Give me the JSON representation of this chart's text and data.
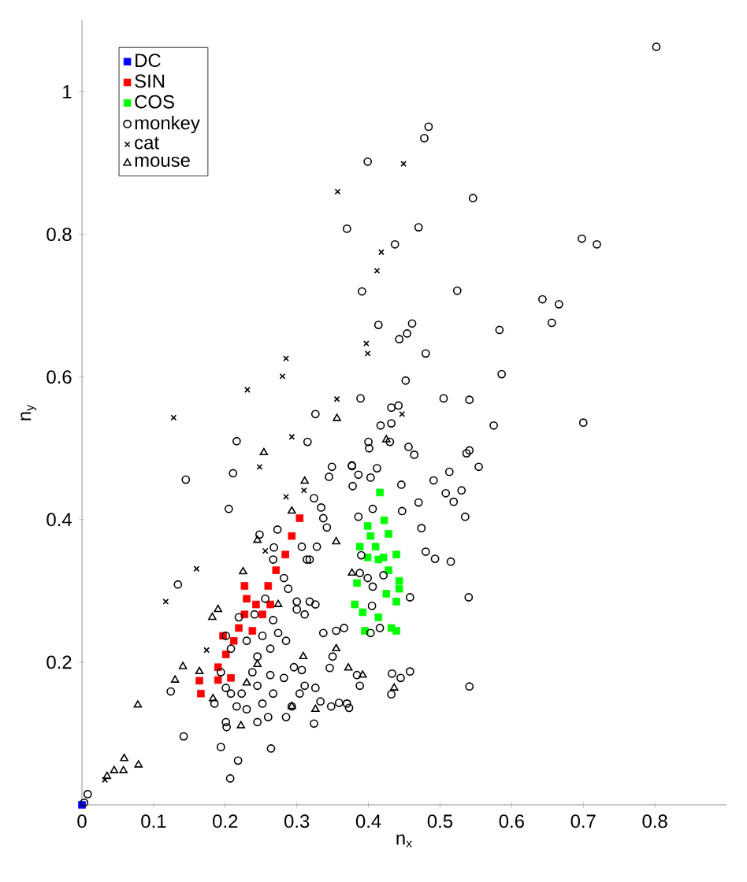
{
  "chart_data": {
    "type": "scatter",
    "xlabel": "n$_{x}$",
    "ylabel": "n$_{y}$",
    "xlim": [
      0,
      0.9
    ],
    "ylim": [
      0,
      1.1
    ],
    "xticks": [
      0,
      0.1,
      0.2,
      0.3,
      0.4,
      0.5,
      0.6,
      0.7,
      0.8
    ],
    "yticks": [
      0.2,
      0.4,
      0.6,
      0.8,
      1
    ],
    "legend": "top left",
    "series": [
      {
        "name": "DC",
        "color": "#0000ff",
        "marker": "square",
        "x": [
          0
        ],
        "values": [
          0
        ]
      },
      {
        "name": "SIN",
        "color": "#ff0000",
        "marker": "square",
        "x": [
          0.166,
          0.164,
          0.19,
          0.19,
          0.201,
          0.212,
          0.219,
          0.227,
          0.227,
          0.23,
          0.243,
          0.252,
          0.26,
          0.271,
          0.284,
          0.293,
          0.304,
          0.208,
          0.197,
          0.238,
          0.263
        ],
        "values": [
          0.156,
          0.174,
          0.175,
          0.193,
          0.211,
          0.23,
          0.248,
          0.267,
          0.307,
          0.289,
          0.281,
          0.267,
          0.307,
          0.329,
          0.351,
          0.377,
          0.402,
          0.178,
          0.237,
          0.244,
          0.281
        ]
      },
      {
        "name": "COS",
        "color": "#00ff00",
        "marker": "square",
        "x": [
          0.416,
          0.422,
          0.399,
          0.403,
          0.41,
          0.428,
          0.439,
          0.421,
          0.388,
          0.399,
          0.414,
          0.428,
          0.443,
          0.384,
          0.425,
          0.439,
          0.381,
          0.392,
          0.414,
          0.432,
          0.395,
          0.439,
          0.443
        ],
        "values": [
          0.438,
          0.399,
          0.391,
          0.377,
          0.362,
          0.38,
          0.351,
          0.347,
          0.362,
          0.347,
          0.344,
          0.329,
          0.314,
          0.311,
          0.296,
          0.285,
          0.281,
          0.27,
          0.263,
          0.248,
          0.244,
          0.244,
          0.303
        ]
      },
      {
        "name": "monkey",
        "color": "#000000",
        "marker": "circle",
        "x": [
          0.802,
          0.484,
          0.478,
          0.399,
          0.546,
          0.37,
          0.47,
          0.437,
          0.698,
          0.719,
          0.391,
          0.524,
          0.643,
          0.666,
          0.414,
          0.461,
          0.454,
          0.443,
          0.583,
          0.656,
          0.48,
          0.586,
          0.452,
          0.389,
          0.505,
          0.541,
          0.432,
          0.442,
          0.417,
          0.432,
          0.575,
          0.7,
          0.4,
          0.401,
          0.43,
          0.456,
          0.464,
          0.537,
          0.541,
          0.554,
          0.377,
          0.412,
          0.386,
          0.403,
          0.378,
          0.446,
          0.513,
          0.491,
          0.508,
          0.53,
          0.519,
          0.47,
          0.535,
          0.447,
          0.474,
          0.386,
          0.39,
          0.48,
          0.493,
          0.515,
          0.54,
          0.541,
          0.458,
          0.433,
          0.445,
          0.432,
          0.458,
          0.405,
          0.403,
          0.416,
          0.421,
          0.406,
          0.384,
          0.373,
          0.145,
          0.216,
          0.211,
          0.205,
          0.326,
          0.315,
          0.349,
          0.345,
          0.377,
          0.324,
          0.334,
          0.337,
          0.342,
          0.273,
          0.248,
          0.268,
          0.328,
          0.314,
          0.406,
          0.134,
          0.124,
          0.142,
          0.194,
          0.218,
          0.207,
          0.264,
          0.185,
          0.201,
          0.202,
          0.216,
          0.23,
          0.245,
          0.26,
          0.252,
          0.267,
          0.285,
          0.293,
          0.304,
          0.324,
          0.348,
          0.359,
          0.282,
          0.263,
          0.238,
          0.245,
          0.296,
          0.307,
          0.326,
          0.333,
          0.311,
          0.208,
          0.194,
          0.201,
          0.223,
          0.245,
          0.263,
          0.274,
          0.285,
          0.252,
          0.267,
          0.3,
          0.311,
          0.326,
          0.337,
          0.355,
          0.366,
          0.346,
          0.35,
          0.241,
          0.219,
          0.201,
          0.208,
          0.23,
          0.256,
          0.282,
          0.288,
          0.267,
          0.307,
          0.318,
          0.388,
          0.399,
          0.388,
          0.37,
          0.008,
          0.003,
          0.3,
          0.318
        ],
        "values": [
          1.063,
          0.951,
          0.935,
          0.902,
          0.851,
          0.808,
          0.81,
          0.786,
          0.794,
          0.786,
          0.72,
          0.721,
          0.709,
          0.702,
          0.673,
          0.675,
          0.661,
          0.653,
          0.666,
          0.676,
          0.633,
          0.604,
          0.595,
          0.57,
          0.57,
          0.568,
          0.557,
          0.56,
          0.532,
          0.535,
          0.532,
          0.536,
          0.509,
          0.5,
          0.509,
          0.502,
          0.491,
          0.493,
          0.497,
          0.474,
          0.476,
          0.472,
          0.463,
          0.459,
          0.447,
          0.449,
          0.467,
          0.455,
          0.437,
          0.441,
          0.425,
          0.424,
          0.404,
          0.412,
          0.388,
          0.404,
          0.35,
          0.355,
          0.345,
          0.341,
          0.291,
          0.166,
          0.187,
          0.184,
          0.178,
          0.155,
          0.291,
          0.279,
          0.241,
          0.248,
          0.322,
          0.306,
          0.182,
          0.136,
          0.456,
          0.51,
          0.465,
          0.415,
          0.548,
          0.509,
          0.474,
          0.46,
          0.475,
          0.43,
          0.417,
          0.402,
          0.389,
          0.386,
          0.379,
          0.361,
          0.362,
          0.344,
          0.415,
          0.309,
          0.159,
          0.096,
          0.081,
          0.062,
          0.037,
          0.079,
          0.142,
          0.116,
          0.109,
          0.138,
          0.134,
          0.116,
          0.123,
          0.142,
          0.156,
          0.123,
          0.138,
          0.156,
          0.114,
          0.138,
          0.143,
          0.178,
          0.182,
          0.186,
          0.167,
          0.193,
          0.189,
          0.164,
          0.145,
          0.167,
          0.156,
          0.186,
          0.164,
          0.156,
          0.208,
          0.219,
          0.241,
          0.23,
          0.237,
          0.259,
          0.274,
          0.267,
          0.281,
          0.241,
          0.244,
          0.248,
          0.192,
          0.208,
          0.267,
          0.263,
          0.237,
          0.219,
          0.23,
          0.289,
          0.318,
          0.303,
          0.344,
          0.362,
          0.344,
          0.325,
          0.318,
          0.167,
          0.142,
          0.015,
          0.003,
          0.285,
          0.285
        ]
      },
      {
        "name": "cat",
        "color": "#000000",
        "marker": "cross",
        "x": [
          0.357,
          0.449,
          0.418,
          0.412,
          0.397,
          0.399,
          0.447,
          0.128,
          0.231,
          0.28,
          0.285,
          0.293,
          0.248,
          0.285,
          0.31,
          0.356,
          0.16,
          0.117,
          0.174,
          0.256,
          0.032
        ],
        "values": [
          0.86,
          0.899,
          0.775,
          0.749,
          0.647,
          0.633,
          0.548,
          0.543,
          0.582,
          0.601,
          0.626,
          0.516,
          0.474,
          0.432,
          0.441,
          0.569,
          0.331,
          0.285,
          0.217,
          0.356,
          0.035
        ]
      },
      {
        "name": "mouse",
        "color": "#000000",
        "marker": "triangle",
        "x": [
          0.425,
          0.436,
          0.254,
          0.311,
          0.293,
          0.245,
          0.355,
          0.356,
          0.225,
          0.377,
          0.182,
          0.19,
          0.141,
          0.13,
          0.164,
          0.078,
          0.059,
          0.079,
          0.045,
          0.035,
          0.058,
          0.23,
          0.222,
          0.183,
          0.309,
          0.372,
          0.392,
          0.326,
          0.293,
          0.355,
          0.274,
          0.245
        ],
        "values": [
          0.512,
          0.164,
          0.494,
          0.454,
          0.412,
          0.371,
          0.369,
          0.542,
          0.327,
          0.325,
          0.263,
          0.274,
          0.194,
          0.175,
          0.187,
          0.14,
          0.065,
          0.056,
          0.048,
          0.04,
          0.048,
          0.171,
          0.111,
          0.149,
          0.208,
          0.192,
          0.182,
          0.134,
          0.138,
          0.219,
          0.281,
          0.197
        ]
      }
    ]
  }
}
